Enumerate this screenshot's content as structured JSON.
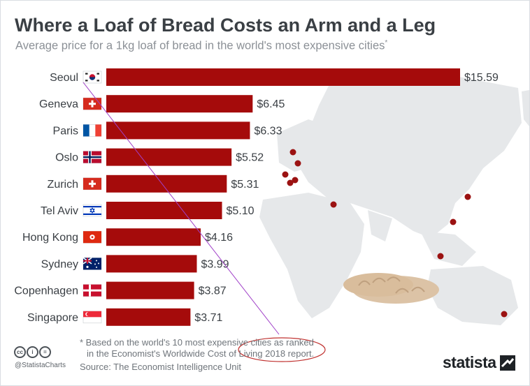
{
  "header": {
    "title": "Where a Loaf of Bread Costs an Arm and a Leg",
    "subtitle": "Average price for a 1kg loaf of bread in the world's most expensive cities",
    "subtitle_mark": "*"
  },
  "chart_data": {
    "type": "bar",
    "orientation": "horizontal",
    "categories": [
      "Seoul",
      "Geneva",
      "Paris",
      "Oslo",
      "Zurich",
      "Tel Aviv",
      "Hong Kong",
      "Sydney",
      "Copenhagen",
      "Singapore"
    ],
    "values": [
      15.59,
      6.45,
      6.33,
      5.52,
      5.31,
      5.1,
      4.16,
      3.99,
      3.87,
      3.71
    ],
    "value_labels": [
      "$15.59",
      "$6.45",
      "$6.33",
      "$5.52",
      "$5.31",
      "$5.10",
      "$4.16",
      "$3.99",
      "$3.87",
      "$3.71"
    ],
    "flags": [
      "south-korea-flag",
      "switzerland-flag",
      "france-flag",
      "norway-flag",
      "switzerland-flag",
      "israel-flag",
      "hong-kong-flag",
      "australia-flag",
      "denmark-flag",
      "singapore-flag"
    ],
    "bar_color": "#a50b0b",
    "background_map": "world-map",
    "city_markers": "dark red dots on map",
    "grid": false,
    "legend": "none"
  },
  "footer": {
    "note_line1": "* Based on the world's 10 most expensive cities as ranked",
    "note_line2": "in the Economist's Worldwide Cost of Living 2018 report.",
    "source": "Source: The Economist Intelligence Unit",
    "handle": "@StatistaCharts",
    "brand": "statista",
    "license_icons": [
      "cc-icon",
      "by-icon",
      "nd-icon"
    ]
  },
  "colors": {
    "bar": "#a50b0b",
    "map": "#e6e8ea",
    "marker": "#9b1212",
    "annotation": "#a040c8",
    "annotation_ellipse": "#c0312f"
  }
}
